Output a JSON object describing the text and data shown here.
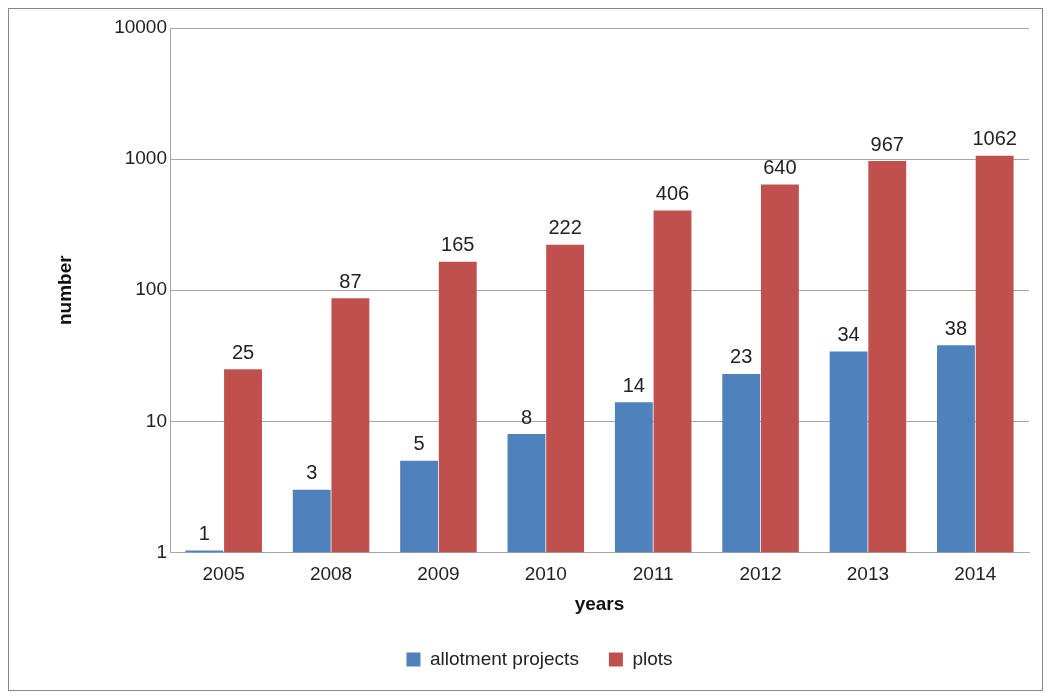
{
  "chart_data": {
    "type": "bar",
    "xlabel": "years",
    "ylabel": "number",
    "categories": [
      "2005",
      "2008",
      "2009",
      "2010",
      "2011",
      "2012",
      "2013",
      "2014"
    ],
    "series": [
      {
        "name": "allotment projects",
        "color": "#4f81bd",
        "values": [
          1,
          3,
          5,
          8,
          14,
          23,
          34,
          38
        ]
      },
      {
        "name": "plots",
        "color": "#c0504d",
        "values": [
          25,
          87,
          165,
          222,
          406,
          640,
          967,
          1062
        ]
      }
    ],
    "log": "y",
    "ylim": [
      1,
      10000
    ],
    "yticks": [
      1,
      10,
      100,
      1000,
      10000
    ],
    "grid": "y",
    "legend": "bottom",
    "data_labels": true
  }
}
